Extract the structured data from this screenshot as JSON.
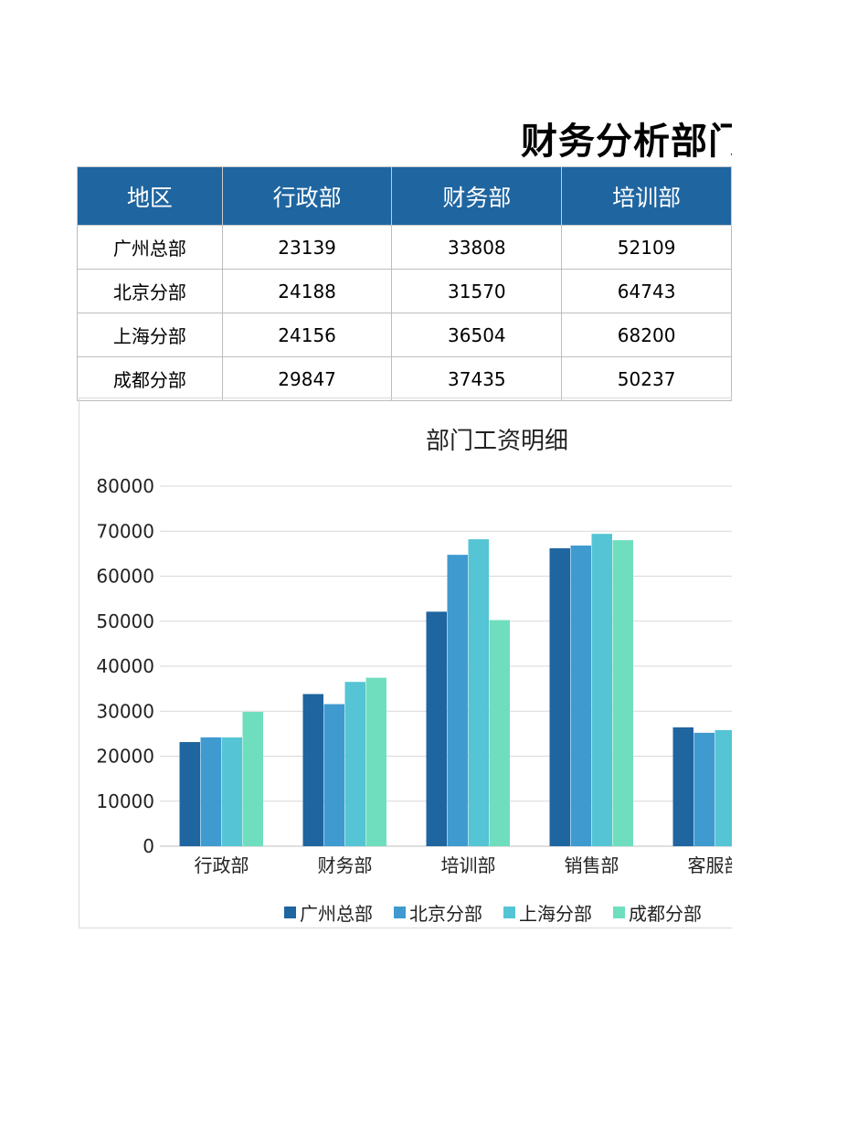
{
  "title": "财务分析部门",
  "table": {
    "headers": [
      "地区",
      "行政部",
      "财务部",
      "培训部"
    ],
    "rows": [
      [
        "广州总部",
        "23139",
        "33808",
        "52109"
      ],
      [
        "北京分部",
        "24188",
        "31570",
        "64743"
      ],
      [
        "上海分部",
        "24156",
        "36504",
        "68200"
      ],
      [
        "成都分部",
        "29847",
        "37435",
        "50237"
      ]
    ]
  },
  "chart_data": {
    "type": "bar",
    "title": "部门工资明细",
    "categories": [
      "行政部",
      "财务部",
      "培训部",
      "销售部",
      "客服部"
    ],
    "series": [
      {
        "name": "广州总部",
        "color": "#1f65a0",
        "values": [
          23139,
          33808,
          52109,
          66200,
          26400
        ]
      },
      {
        "name": "北京分部",
        "color": "#3f9ad0",
        "values": [
          24188,
          31570,
          64743,
          66800,
          25200
        ]
      },
      {
        "name": "上海分部",
        "color": "#55c4d4",
        "values": [
          24156,
          36504,
          68200,
          69400,
          25800
        ]
      },
      {
        "name": "成都分部",
        "color": "#6fdebf",
        "values": [
          29847,
          37435,
          50237,
          68000,
          null
        ]
      }
    ],
    "ylim": [
      0,
      80000
    ],
    "yticks": [
      0,
      10000,
      20000,
      30000,
      40000,
      50000,
      60000,
      70000,
      80000
    ],
    "grid": true,
    "legend": "bottom"
  }
}
